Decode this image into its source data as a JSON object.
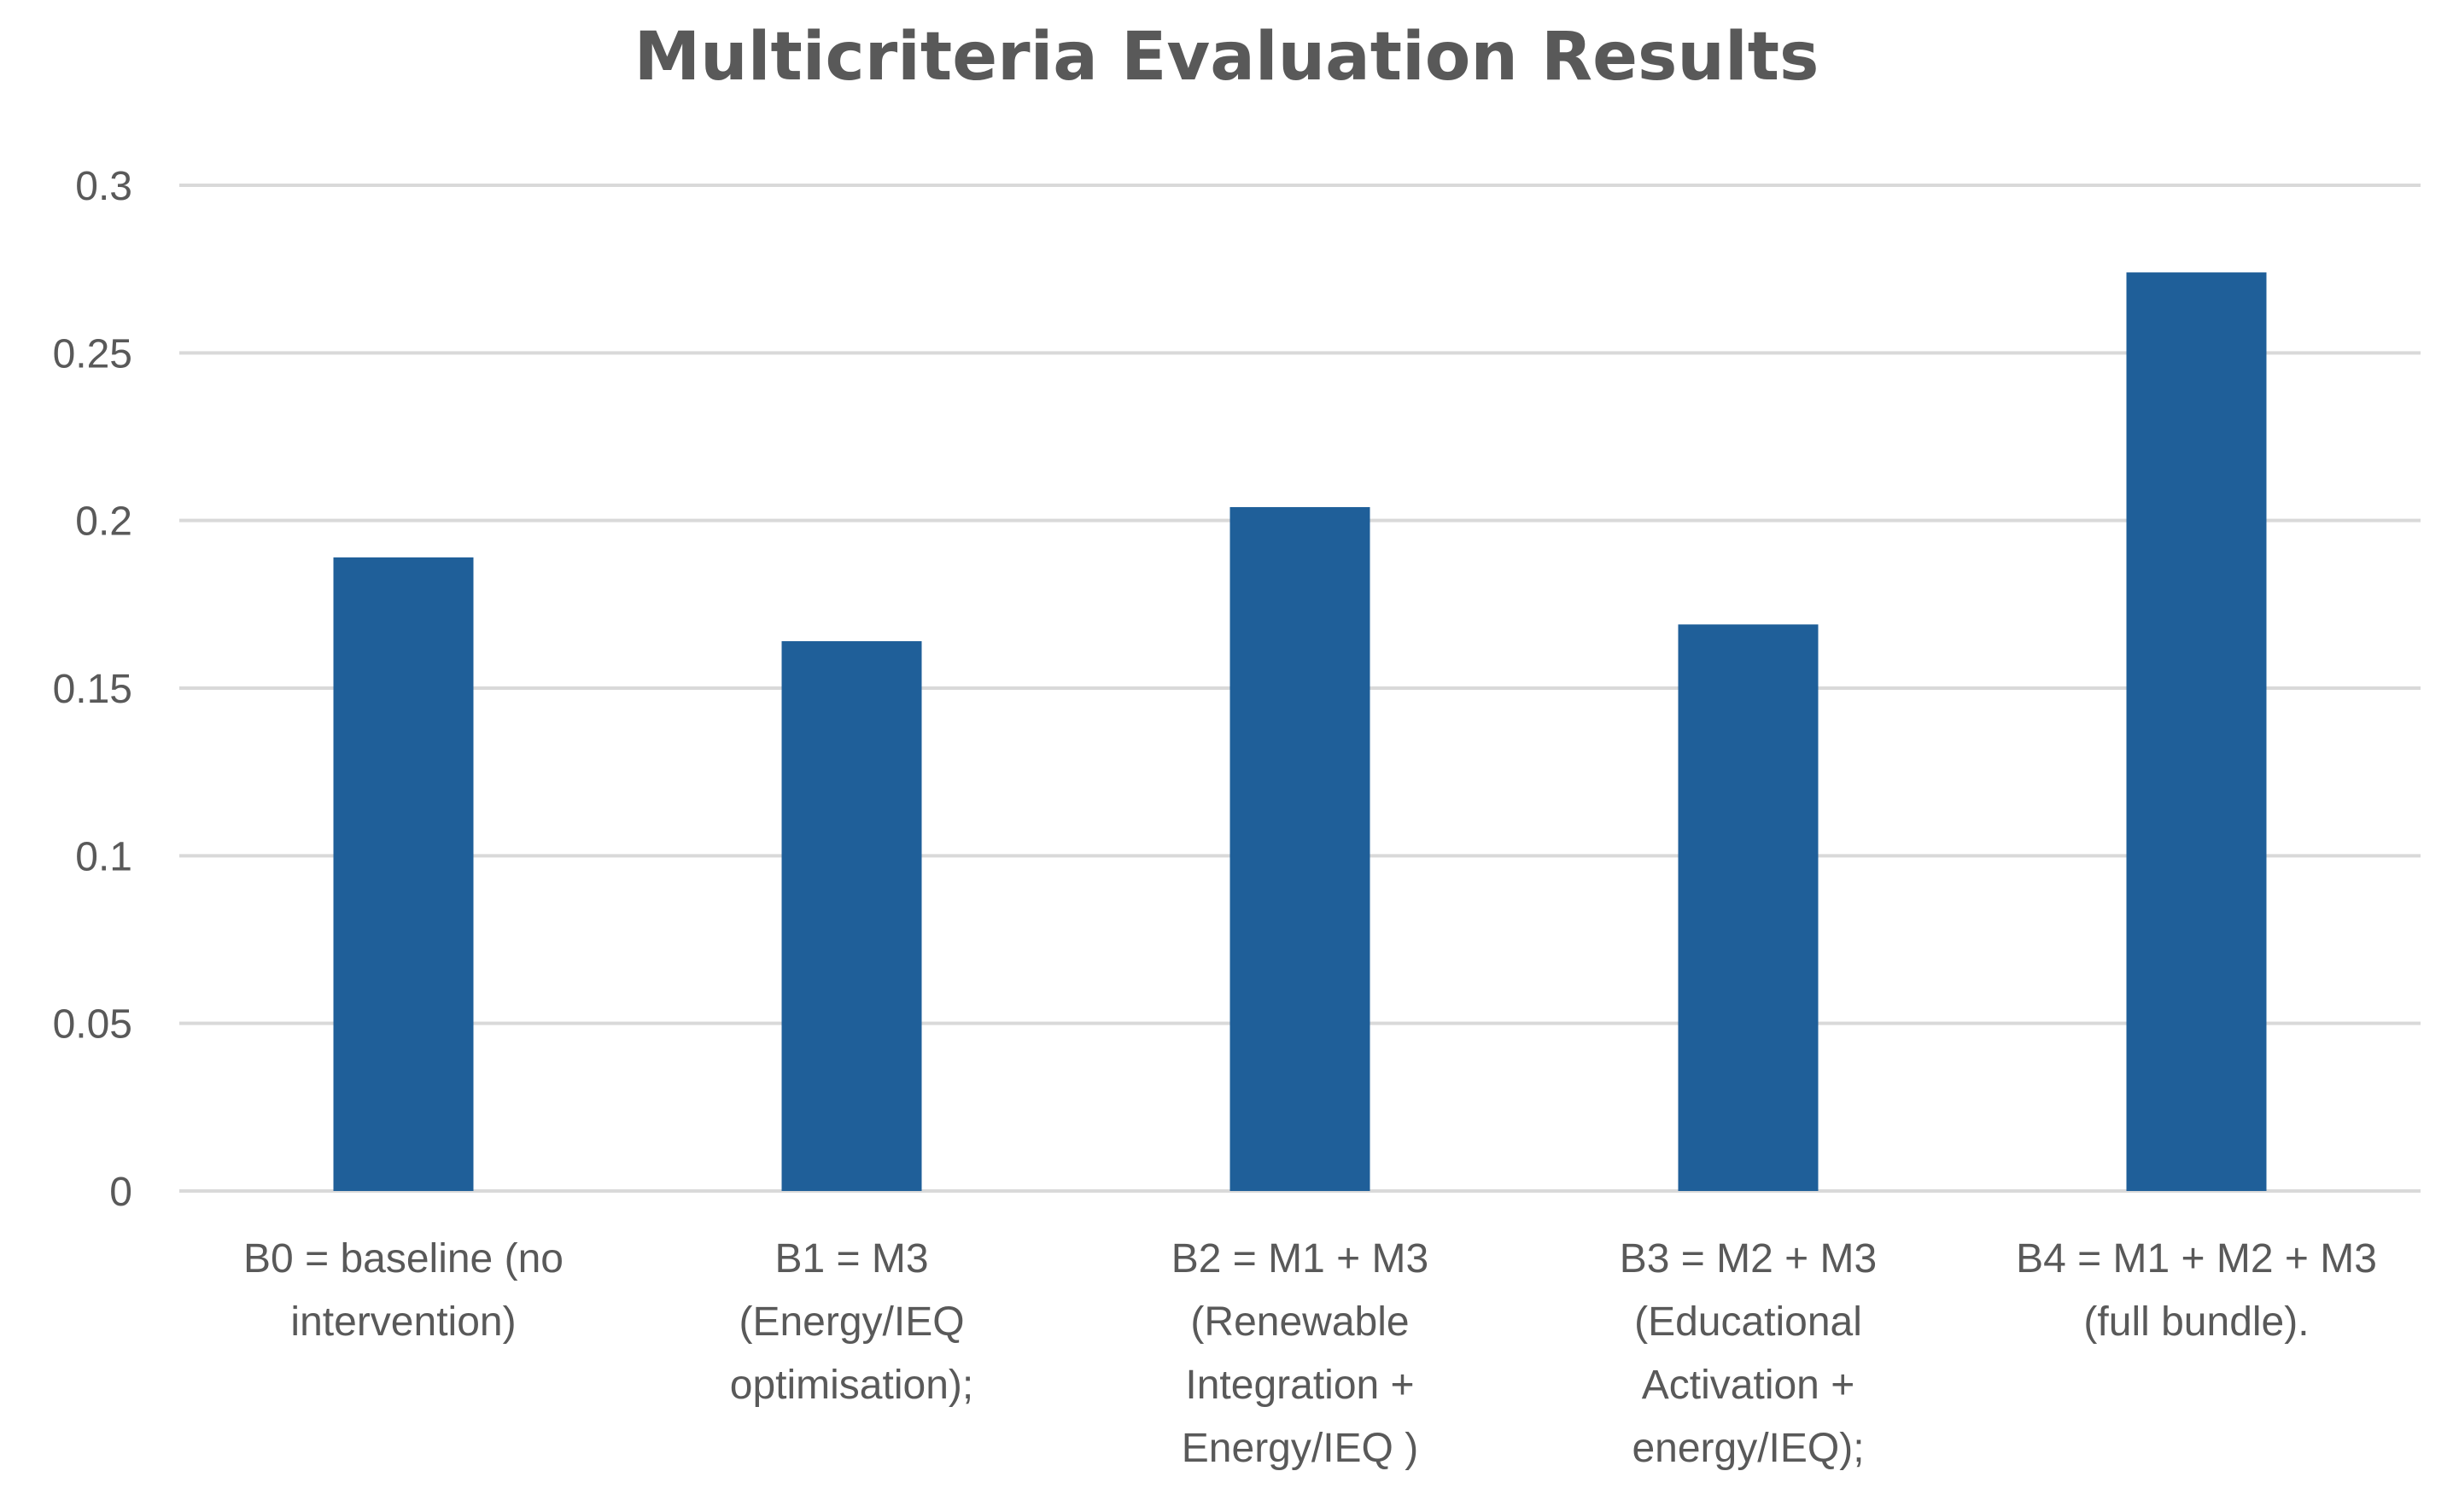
{
  "chart_data": {
    "type": "bar",
    "title": "Multicriteria Evaluation Results",
    "xlabel": "",
    "ylabel": "",
    "categories": [
      [
        "B0 = baseline (no",
        "intervention)"
      ],
      [
        "B1 = M3",
        "(Energy/IEQ",
        "optimisation);"
      ],
      [
        "B2 = M1 + M3",
        "(Renewable",
        "Integration +",
        "Energy/IEQ )"
      ],
      [
        "B3 = M2 + M3",
        "(Educational",
        "Activation +",
        "energy/IEQ);"
      ],
      [
        "B4 = M1 + M2 + M3",
        "(full bundle)."
      ]
    ],
    "values": [
      0.189,
      0.164,
      0.204,
      0.169,
      0.274
    ],
    "ylim": [
      0,
      0.3
    ],
    "yticks": [
      0,
      0.05,
      0.1,
      0.15,
      0.2,
      0.25,
      0.3
    ],
    "ytick_labels": [
      "0",
      "0.05",
      "0.1",
      "0.15",
      "0.2",
      "0.25",
      "0.3"
    ],
    "grid": true,
    "legend": "none",
    "colors": {
      "bar": "#1F5F99",
      "grid": "#D9D9D9",
      "tick_text": "#595959",
      "title": "#595959"
    }
  }
}
